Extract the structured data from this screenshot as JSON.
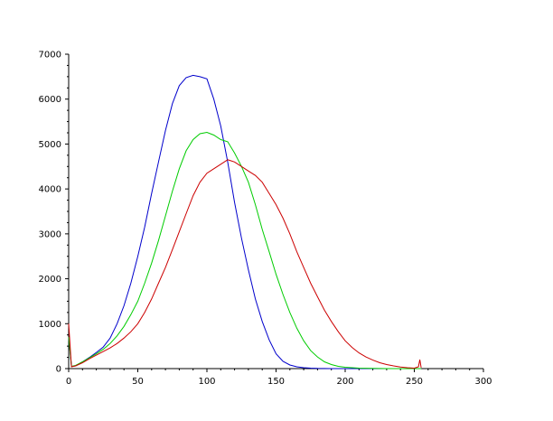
{
  "chart_data": {
    "type": "line",
    "title": "",
    "xlabel": "",
    "ylabel": "",
    "xlim": [
      0,
      300
    ],
    "ylim": [
      0,
      7000
    ],
    "x_ticks": [
      0,
      50,
      100,
      150,
      200,
      250,
      300
    ],
    "y_ticks": [
      0,
      1000,
      2000,
      3000,
      4000,
      5000,
      6000,
      7000
    ],
    "grid": false,
    "legend": "none",
    "series": [
      {
        "color": "#0000cc",
        "x": [
          0,
          2,
          5,
          10,
          15,
          20,
          25,
          30,
          35,
          40,
          45,
          50,
          55,
          60,
          65,
          70,
          75,
          80,
          85,
          90,
          95,
          100,
          105,
          110,
          115,
          120,
          125,
          130,
          135,
          140,
          145,
          150,
          155,
          160,
          165,
          170,
          175,
          180,
          185,
          190,
          200,
          220,
          255
        ],
        "y": [
          700,
          50,
          60,
          150,
          250,
          360,
          480,
          680,
          1000,
          1400,
          1900,
          2500,
          3150,
          3900,
          4600,
          5300,
          5900,
          6300,
          6480,
          6530,
          6500,
          6450,
          6000,
          5400,
          4600,
          3700,
          2900,
          2200,
          1550,
          1050,
          640,
          330,
          160,
          80,
          40,
          20,
          10,
          5,
          3,
          0,
          0,
          0,
          0
        ]
      },
      {
        "color": "#00cc00",
        "x": [
          0,
          2,
          5,
          10,
          15,
          20,
          25,
          30,
          35,
          40,
          45,
          50,
          55,
          60,
          65,
          70,
          75,
          80,
          85,
          90,
          95,
          100,
          105,
          110,
          115,
          120,
          125,
          130,
          135,
          140,
          145,
          150,
          155,
          160,
          165,
          170,
          175,
          180,
          185,
          190,
          195,
          200,
          210,
          220,
          230,
          255
        ],
        "y": [
          700,
          50,
          70,
          150,
          240,
          330,
          430,
          560,
          730,
          940,
          1200,
          1500,
          1900,
          2350,
          2850,
          3400,
          3950,
          4450,
          4850,
          5100,
          5230,
          5260,
          5200,
          5100,
          5050,
          4800,
          4500,
          4150,
          3650,
          3100,
          2600,
          2100,
          1650,
          1250,
          900,
          620,
          400,
          260,
          150,
          90,
          50,
          30,
          10,
          5,
          0,
          0
        ]
      },
      {
        "color": "#cc0000",
        "x": [
          0,
          2,
          5,
          10,
          15,
          20,
          25,
          30,
          35,
          40,
          45,
          50,
          55,
          60,
          65,
          70,
          75,
          80,
          85,
          90,
          95,
          100,
          105,
          110,
          115,
          120,
          125,
          130,
          135,
          140,
          145,
          150,
          155,
          160,
          165,
          170,
          175,
          180,
          185,
          190,
          195,
          200,
          205,
          210,
          215,
          220,
          225,
          230,
          235,
          240,
          245,
          250,
          253,
          254,
          255
        ],
        "y": [
          1000,
          40,
          60,
          130,
          220,
          300,
          380,
          460,
          560,
          680,
          820,
          1000,
          1250,
          1550,
          1900,
          2250,
          2650,
          3050,
          3450,
          3850,
          4150,
          4350,
          4450,
          4550,
          4650,
          4600,
          4500,
          4400,
          4300,
          4150,
          3900,
          3650,
          3350,
          3000,
          2600,
          2250,
          1900,
          1600,
          1300,
          1050,
          820,
          620,
          470,
          350,
          260,
          190,
          130,
          90,
          60,
          35,
          20,
          10,
          40,
          200,
          20
        ]
      }
    ]
  }
}
